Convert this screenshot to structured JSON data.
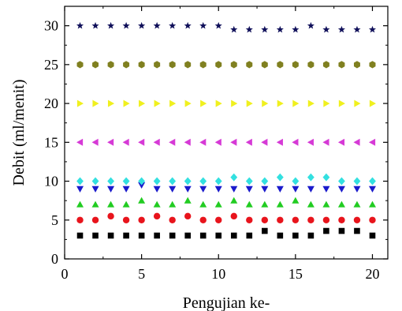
{
  "chart_data": {
    "type": "scatter",
    "title": "",
    "xlabel": "Pengujian ke-",
    "ylabel": "Debit (ml/menit)",
    "xlim": [
      0,
      21
    ],
    "ylim": [
      0,
      32.5
    ],
    "x_ticks": [
      0,
      5,
      10,
      15,
      20
    ],
    "y_ticks": [
      0,
      5,
      10,
      15,
      20,
      25,
      30
    ],
    "grid": false,
    "legend": "none",
    "x": [
      1,
      2,
      3,
      4,
      5,
      6,
      7,
      8,
      9,
      10,
      11,
      12,
      13,
      14,
      15,
      16,
      17,
      18,
      19,
      20
    ],
    "series": [
      {
        "marker": "square",
        "color": "#000000",
        "values": [
          3.0,
          3.0,
          3.0,
          3.0,
          3.0,
          3.0,
          3.0,
          3.0,
          3.0,
          3.0,
          3.0,
          3.0,
          3.6,
          3.0,
          3.0,
          3.0,
          3.6,
          3.6,
          3.6,
          3.0
        ]
      },
      {
        "marker": "circle",
        "color": "#e8141c",
        "values": [
          5.0,
          5.0,
          5.5,
          5.0,
          5.0,
          5.5,
          5.0,
          5.5,
          5.0,
          5.0,
          5.5,
          5.0,
          5.0,
          5.0,
          5.0,
          5.0,
          5.0,
          5.0,
          5.0,
          5.0
        ]
      },
      {
        "marker": "triangle-up",
        "color": "#22cc22",
        "values": [
          7.0,
          7.0,
          7.0,
          7.0,
          7.5,
          7.0,
          7.0,
          7.5,
          7.0,
          7.0,
          7.5,
          7.0,
          7.0,
          7.0,
          7.5,
          7.0,
          7.0,
          7.0,
          7.0,
          7.0
        ]
      },
      {
        "marker": "triangle-down",
        "color": "#1a1acc",
        "values": [
          9.0,
          9.0,
          9.0,
          9.0,
          9.5,
          9.0,
          9.0,
          9.0,
          9.0,
          9.0,
          9.0,
          9.0,
          9.0,
          9.0,
          9.0,
          9.0,
          9.0,
          9.0,
          9.0,
          9.0
        ]
      },
      {
        "marker": "diamond",
        "color": "#33e0e0",
        "values": [
          10.0,
          10.0,
          10.0,
          10.0,
          10.0,
          10.0,
          10.0,
          10.0,
          10.0,
          10.0,
          10.5,
          10.0,
          10.0,
          10.5,
          10.0,
          10.5,
          10.5,
          10.0,
          10.0,
          10.0
        ]
      },
      {
        "marker": "triangle-left",
        "color": "#d63ad6",
        "values": [
          15,
          15,
          15,
          15,
          15,
          15,
          15,
          15,
          15,
          15,
          15,
          15,
          15,
          15,
          15,
          15,
          15,
          15,
          15,
          15
        ]
      },
      {
        "marker": "triangle-right",
        "color": "#f0f01e",
        "values": [
          20,
          20,
          20,
          20,
          20,
          20,
          20,
          20,
          20,
          20,
          20,
          20,
          20,
          20,
          20,
          20,
          20,
          20,
          20,
          20
        ]
      },
      {
        "marker": "hexagon",
        "color": "#808020",
        "values": [
          25,
          25,
          25,
          25,
          25,
          25,
          25,
          25,
          25,
          25,
          25,
          25,
          25,
          25,
          25,
          25,
          25,
          25,
          25,
          25
        ]
      },
      {
        "marker": "star",
        "color": "#10105a",
        "values": [
          30.0,
          30.0,
          30.0,
          30.0,
          30.0,
          30.0,
          30.0,
          30.0,
          30.0,
          30.0,
          29.5,
          29.5,
          29.5,
          29.5,
          29.5,
          30.0,
          29.5,
          29.5,
          29.5,
          29.5
        ]
      }
    ]
  }
}
